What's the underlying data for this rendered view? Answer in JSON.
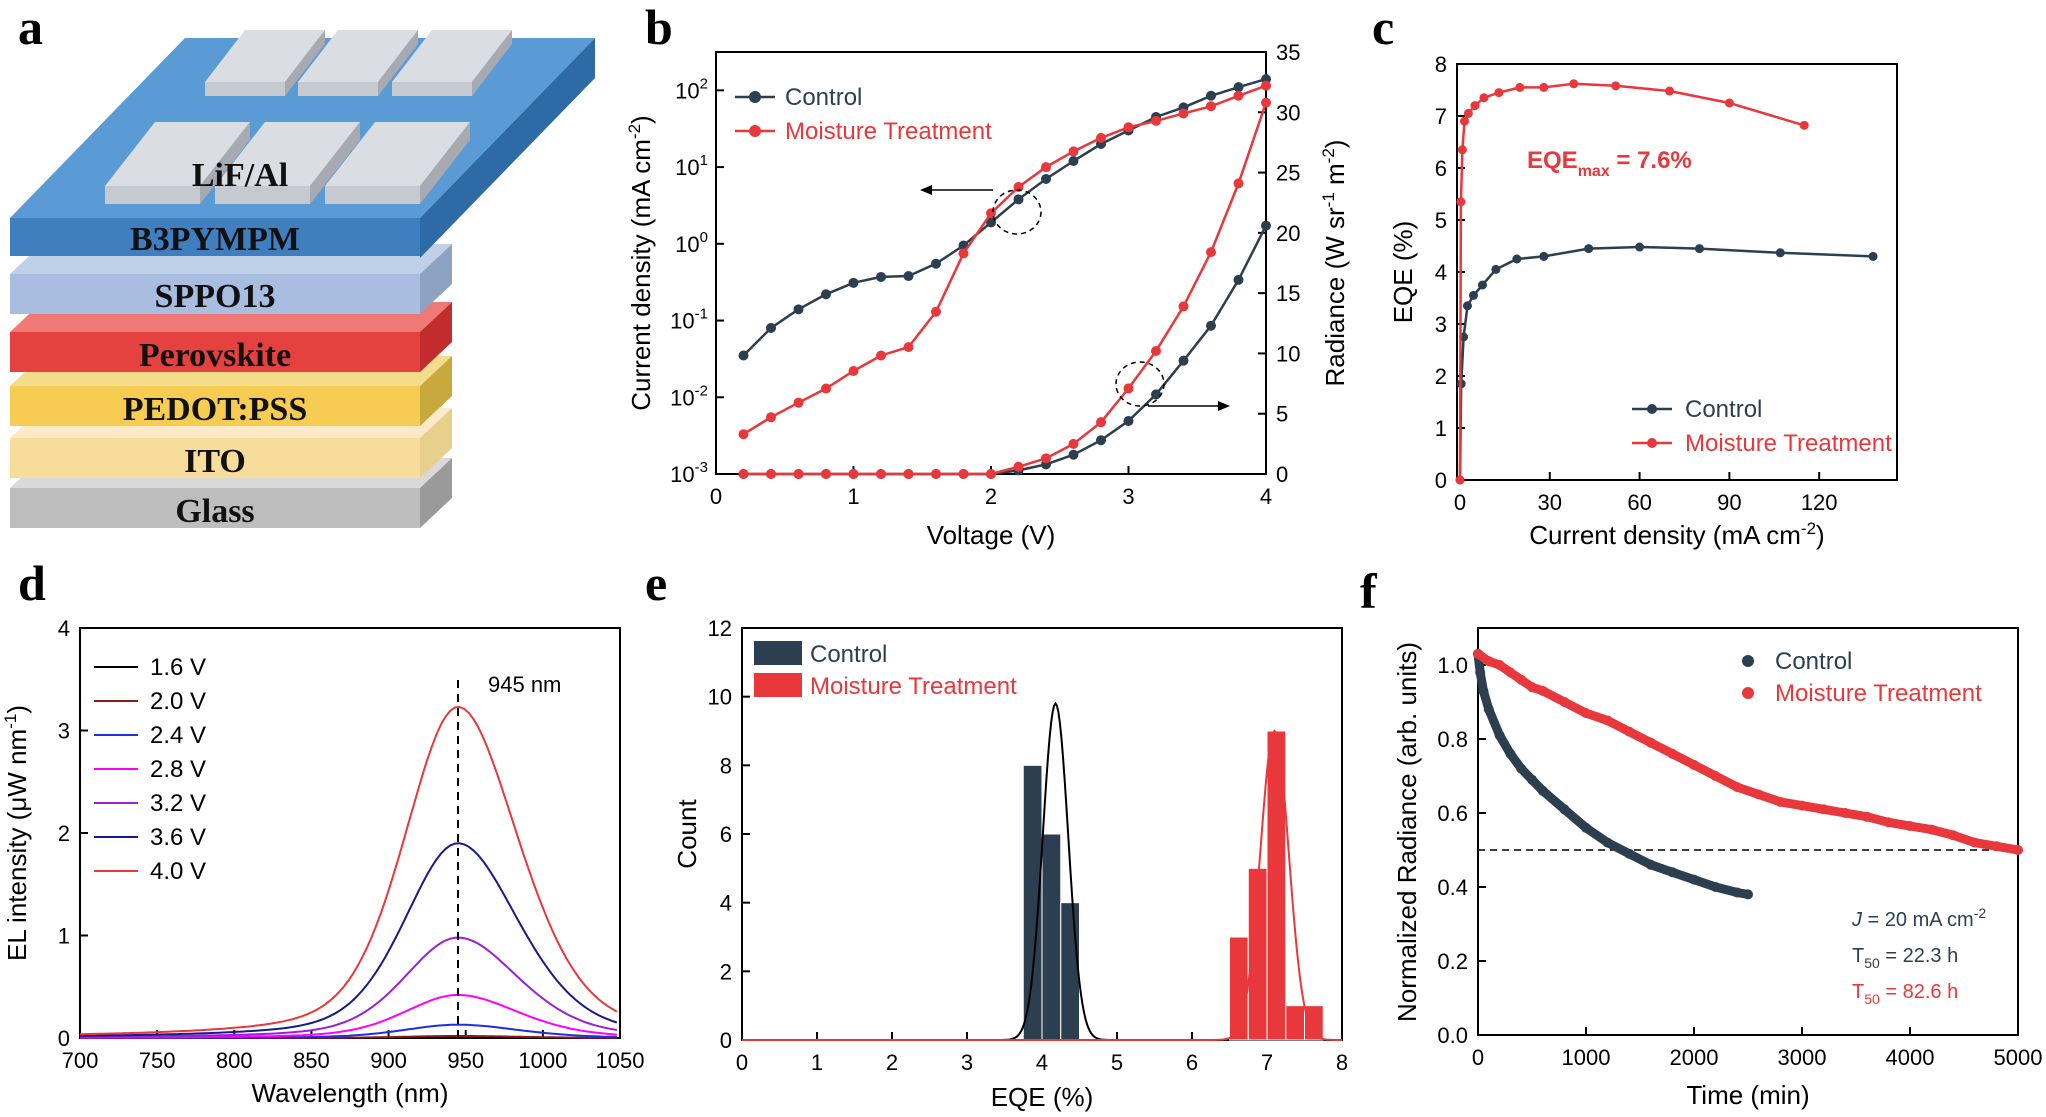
{
  "panels": {
    "a": {
      "label": "a",
      "layers": [
        "LiF/Al",
        "B3PYMPM",
        "SPPO13",
        "Perovskite",
        "PEDOT:PSS",
        "ITO",
        "Glass"
      ]
    },
    "b": {
      "label": "b"
    },
    "c": {
      "label": "c"
    },
    "d": {
      "label": "d"
    },
    "e": {
      "label": "e"
    },
    "f": {
      "label": "f"
    }
  },
  "colors": {
    "control": "#2b3f50",
    "moisture": "#e8383c"
  },
  "chart_data": [
    {
      "panel": "b",
      "type": "line",
      "xlabel": "Voltage (V)",
      "ylabel_left": "Current density (mA cm",
      "ylabel_left_sup": "-2",
      "ylabel_left_end": ")",
      "ylabel_right": "Radiance (W sr",
      "ylabel_right_sup1": "-1",
      "ylabel_right_mid": " m",
      "ylabel_right_sup2": "-2",
      "ylabel_right_end": ")",
      "xlim": [
        0,
        4
      ],
      "xticks": [
        "0",
        "1",
        "2",
        "3",
        "4"
      ],
      "ylim_left_log": [
        0.001,
        316
      ],
      "yticks_left": [
        {
          "b": "10",
          "e": "-3"
        },
        {
          "b": "10",
          "e": "-2"
        },
        {
          "b": "10",
          "e": "-1"
        },
        {
          "b": "10",
          "e": "0"
        },
        {
          "b": "10",
          "e": "1"
        },
        {
          "b": "10",
          "e": "2"
        }
      ],
      "ylim_right": [
        0,
        35
      ],
      "yticks_right": [
        "0",
        "5",
        "10",
        "15",
        "20",
        "25",
        "30",
        "35"
      ],
      "x": [
        0.2,
        0.4,
        0.6,
        0.8,
        1.0,
        1.2,
        1.4,
        1.6,
        1.8,
        2.0,
        2.2,
        2.4,
        2.6,
        2.8,
        3.0,
        3.2,
        3.4,
        3.6,
        3.8,
        4.0
      ],
      "series": [
        {
          "name": "Control",
          "axis": "left",
          "values": [
            0.035,
            0.08,
            0.14,
            0.22,
            0.31,
            0.37,
            0.38,
            0.55,
            0.95,
            1.9,
            3.8,
            7.0,
            12,
            20,
            30,
            45,
            60,
            85,
            110,
            140
          ]
        },
        {
          "name": "Moisture Treatment",
          "axis": "left",
          "values": [
            0.0033,
            0.0055,
            0.0085,
            0.013,
            0.022,
            0.035,
            0.045,
            0.13,
            0.75,
            2.5,
            5.5,
            10,
            16,
            24,
            33,
            40,
            50,
            62,
            85,
            115
          ]
        },
        {
          "name": "Control",
          "axis": "right",
          "values": [
            0,
            0,
            0,
            0,
            0,
            0,
            0,
            0,
            0,
            0,
            0.3,
            0.8,
            1.6,
            2.8,
            4.4,
            6.6,
            9.4,
            12.3,
            16.1,
            20.6
          ]
        },
        {
          "name": "Moisture Treatment",
          "axis": "right",
          "values": [
            0,
            0,
            0,
            0,
            0,
            0,
            0,
            0,
            0,
            0,
            0.6,
            1.3,
            2.5,
            4.3,
            7.1,
            10.2,
            13.9,
            18.4,
            24.1,
            30.8
          ]
        }
      ]
    },
    {
      "panel": "c",
      "type": "line",
      "xlabel": "Current density (mA cm",
      "xlabel_sup": "-2",
      "xlabel_end": ")",
      "ylabel": "EQE (%)",
      "xlim": [
        -1,
        146
      ],
      "xticks": [
        "0",
        "30",
        "60",
        "90",
        "120"
      ],
      "ylim": [
        0,
        8
      ],
      "yticks": [
        "0",
        "1",
        "2",
        "3",
        "4",
        "5",
        "6",
        "7",
        "8"
      ],
      "annotation": {
        "prefix": "EQE",
        "sub": "max",
        "suffix": " = 7.6%"
      },
      "series": [
        {
          "name": "Control",
          "x": [
            0,
            0.4,
            1.2,
            2.5,
            4.5,
            7.5,
            12,
            19,
            28,
            43,
            60,
            80,
            107,
            138
          ],
          "y": [
            0,
            1.85,
            2.75,
            3.35,
            3.55,
            3.75,
            4.05,
            4.25,
            4.3,
            4.45,
            4.48,
            4.45,
            4.37,
            4.3
          ]
        },
        {
          "name": "Moisture Treatment",
          "x": [
            0,
            0.3,
            0.8,
            1.5,
            2.8,
            5,
            8,
            13,
            20,
            28,
            38,
            52,
            70,
            90,
            115
          ],
          "y": [
            0,
            5.35,
            6.35,
            6.9,
            7.05,
            7.2,
            7.35,
            7.45,
            7.55,
            7.55,
            7.62,
            7.58,
            7.48,
            7.25,
            6.82
          ]
        }
      ]
    },
    {
      "panel": "d",
      "type": "line",
      "xlabel": "Wavelength (nm)",
      "ylabel": "EL intensity (",
      "ylabel_mu": "μ",
      "ylabel_mid": "W nm",
      "ylabel_sup": "-1",
      "ylabel_end": ")",
      "xlim": [
        700,
        1050
      ],
      "xticks": [
        "700",
        "750",
        "800",
        "850",
        "900",
        "950",
        "1000",
        "1050"
      ],
      "ylim": [
        0,
        4
      ],
      "yticks": [
        "0",
        "1",
        "2",
        "3",
        "4"
      ],
      "annotation": "945 nm",
      "peak_nm": 945,
      "series": [
        {
          "name": "1.6 V",
          "peak": 0.0,
          "color": "#000000"
        },
        {
          "name": "2.0 V",
          "peak": 0.02,
          "color": "#8b1a1a"
        },
        {
          "name": "2.4 V",
          "peak": 0.13,
          "color": "#1f2fe0"
        },
        {
          "name": "2.8 V",
          "peak": 0.42,
          "color": "#ff00ff"
        },
        {
          "name": "3.2 V",
          "peak": 0.98,
          "color": "#9a1fd6"
        },
        {
          "name": "3.6 V",
          "peak": 1.9,
          "color": "#161a8a"
        },
        {
          "name": "4.0 V",
          "peak": 3.23,
          "color": "#e8383c"
        }
      ]
    },
    {
      "panel": "e",
      "type": "bar",
      "xlabel": "EQE (%)",
      "ylabel": "Count",
      "xlim": [
        0,
        8
      ],
      "xticks": [
        "0",
        "1",
        "2",
        "3",
        "4",
        "5",
        "6",
        "7",
        "8"
      ],
      "ylim": [
        0,
        12
      ],
      "yticks": [
        "0",
        "2",
        "4",
        "6",
        "8",
        "10",
        "12"
      ],
      "bin_width": 0.25,
      "series": [
        {
          "name": "Control",
          "bins": [
            3.875,
            4.125,
            4.375
          ],
          "counts": [
            8,
            6,
            4
          ],
          "fit_mean": 4.18,
          "fit_sd": 0.17,
          "fit_peak": 9.8
        },
        {
          "name": "Moisture Treatment",
          "bins": [
            6.625,
            6.875,
            7.125,
            7.375,
            7.625
          ],
          "counts": [
            3,
            5,
            9,
            1,
            1
          ],
          "fit_mean": 7.1,
          "fit_sd": 0.19,
          "fit_peak": 9.0
        }
      ]
    },
    {
      "panel": "f",
      "type": "scatter",
      "xlabel": "Time (min)",
      "ylabel": "Normalized Radiance (arb. units)",
      "xlim": [
        0,
        5000
      ],
      "xticks": [
        "0",
        "1000",
        "2000",
        "3000",
        "4000",
        "5000"
      ],
      "ylim": [
        0,
        1.1
      ],
      "yticks": [
        "0.0",
        "0.2",
        "0.4",
        "0.6",
        "0.8",
        "1.0"
      ],
      "reference_y": 0.5,
      "notes": [
        {
          "pre": "",
          "italic": "J",
          "post": " = 20 mA cm",
          "sup": "-2",
          "color": "#2b3f50"
        },
        {
          "pre": "T",
          "sub": "50",
          "post": " = 22.3 h",
          "color": "#2b3f50"
        },
        {
          "pre": "T",
          "sub": "50",
          "post": " = 82.6 h",
          "color": "#e8383c"
        }
      ],
      "series": [
        {
          "name": "Control",
          "x": [
            0,
            20,
            50,
            100,
            200,
            300,
            400,
            500,
            600,
            800,
            1000,
            1200,
            1400,
            1600,
            1800,
            2000,
            2200,
            2400,
            2500
          ],
          "y": [
            1.03,
            0.98,
            0.93,
            0.88,
            0.81,
            0.76,
            0.72,
            0.69,
            0.66,
            0.61,
            0.56,
            0.52,
            0.49,
            0.46,
            0.44,
            0.42,
            0.4,
            0.385,
            0.38
          ]
        },
        {
          "name": "Moisture Treatment",
          "x": [
            0,
            100,
            200,
            300,
            400,
            500,
            600,
            800,
            1000,
            1200,
            1400,
            1600,
            1800,
            2000,
            2200,
            2400,
            2600,
            2800,
            3000,
            3200,
            3400,
            3600,
            3800,
            4000,
            4200,
            4400,
            4600,
            4800,
            5000
          ],
          "y": [
            1.03,
            1.01,
            1.0,
            0.98,
            0.96,
            0.94,
            0.93,
            0.9,
            0.87,
            0.85,
            0.82,
            0.79,
            0.76,
            0.73,
            0.7,
            0.67,
            0.65,
            0.63,
            0.62,
            0.61,
            0.6,
            0.59,
            0.575,
            0.565,
            0.555,
            0.54,
            0.52,
            0.51,
            0.5
          ]
        }
      ]
    }
  ]
}
